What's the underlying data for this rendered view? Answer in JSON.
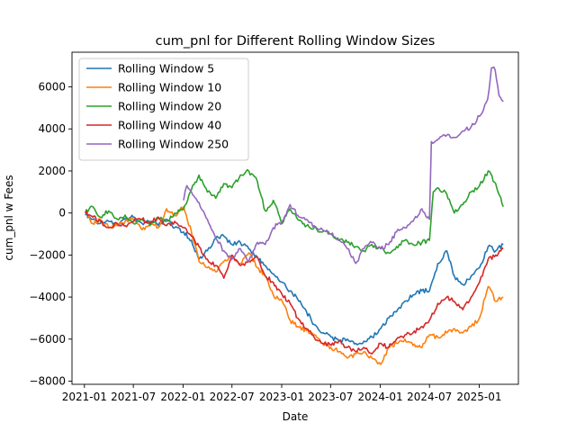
{
  "chart_data": {
    "type": "line",
    "title": "cum_pnl for Different Rolling Window Sizes",
    "xlabel": "Date",
    "ylabel": "cum_pnl w Fees",
    "x_axis": "date",
    "xlim": [
      "2020-11-16",
      "2025-05-26"
    ],
    "ylim": [
      -8150,
      7650
    ],
    "x_ticks": [
      "2021-01",
      "2021-07",
      "2022-01",
      "2022-07",
      "2023-01",
      "2023-07",
      "2024-01",
      "2024-07",
      "2025-01"
    ],
    "y_ticks": [
      -8000,
      -6000,
      -4000,
      -2000,
      0,
      2000,
      4000,
      6000
    ],
    "y_tick_labels": [
      "−8000",
      "−6000",
      "−4000",
      "−2000",
      "0",
      "2000",
      "4000",
      "6000"
    ],
    "grid": false,
    "legend_location": "upper-left",
    "series": [
      {
        "name": "Rolling Window 5",
        "color": "#1f77b4",
        "points": [
          [
            "2021-01-04",
            -100
          ],
          [
            "2021-02-01",
            -300
          ],
          [
            "2021-03-01",
            -500
          ],
          [
            "2021-04-01",
            -400
          ],
          [
            "2021-05-03",
            -600
          ],
          [
            "2021-06-01",
            -300
          ],
          [
            "2021-07-01",
            -200
          ],
          [
            "2021-08-02",
            -500
          ],
          [
            "2021-09-01",
            -400
          ],
          [
            "2021-10-01",
            -600
          ],
          [
            "2021-11-01",
            -300
          ],
          [
            "2021-12-01",
            -700
          ],
          [
            "2022-01-03",
            -900
          ],
          [
            "2022-02-01",
            -1300
          ],
          [
            "2022-03-01",
            -2200
          ],
          [
            "2022-04-01",
            -1800
          ],
          [
            "2022-05-02",
            -1200
          ],
          [
            "2022-06-01",
            -1100
          ],
          [
            "2022-07-01",
            -1500
          ],
          [
            "2022-08-01",
            -1400
          ],
          [
            "2022-09-01",
            -1700
          ],
          [
            "2022-10-03",
            -2100
          ],
          [
            "2022-11-01",
            -2500
          ],
          [
            "2022-12-01",
            -2900
          ],
          [
            "2023-01-03",
            -3300
          ],
          [
            "2023-02-01",
            -3700
          ],
          [
            "2023-03-01",
            -4100
          ],
          [
            "2023-04-03",
            -4700
          ],
          [
            "2023-05-01",
            -5300
          ],
          [
            "2023-06-01",
            -5700
          ],
          [
            "2023-07-03",
            -5900
          ],
          [
            "2023-08-01",
            -6100
          ],
          [
            "2023-09-01",
            -6000
          ],
          [
            "2023-10-02",
            -6200
          ],
          [
            "2023-11-01",
            -6100
          ],
          [
            "2023-12-01",
            -5900
          ],
          [
            "2024-01-02",
            -5500
          ],
          [
            "2024-02-01",
            -5000
          ],
          [
            "2024-03-01",
            -4700
          ],
          [
            "2024-04-01",
            -4200
          ],
          [
            "2024-05-01",
            -3900
          ],
          [
            "2024-06-03",
            -3700
          ],
          [
            "2024-07-01",
            -3700
          ],
          [
            "2024-08-01",
            -2400
          ],
          [
            "2024-09-03",
            -1800
          ],
          [
            "2024-10-01",
            -3000
          ],
          [
            "2024-11-01",
            -3400
          ],
          [
            "2024-12-02",
            -3000
          ],
          [
            "2025-01-02",
            -2600
          ],
          [
            "2025-02-03",
            -1600
          ],
          [
            "2025-03-03",
            -1800
          ],
          [
            "2025-03-31",
            -1500
          ]
        ]
      },
      {
        "name": "Rolling Window 10",
        "color": "#ff7f0e",
        "points": [
          [
            "2021-01-04",
            100
          ],
          [
            "2021-02-01",
            -500
          ],
          [
            "2021-03-01",
            -300
          ],
          [
            "2021-04-01",
            -700
          ],
          [
            "2021-05-03",
            -600
          ],
          [
            "2021-06-01",
            -400
          ],
          [
            "2021-07-01",
            -300
          ],
          [
            "2021-08-02",
            -800
          ],
          [
            "2021-09-01",
            -500
          ],
          [
            "2021-10-01",
            -700
          ],
          [
            "2021-11-01",
            200
          ],
          [
            "2021-12-01",
            -100
          ],
          [
            "2022-01-03",
            300
          ],
          [
            "2022-02-01",
            -900
          ],
          [
            "2022-03-01",
            -2300
          ],
          [
            "2022-04-01",
            -2600
          ],
          [
            "2022-05-02",
            -2800
          ],
          [
            "2022-06-01",
            -2300
          ],
          [
            "2022-07-01",
            -2000
          ],
          [
            "2022-08-01",
            -2400
          ],
          [
            "2022-09-01",
            -1900
          ],
          [
            "2022-10-03",
            -2600
          ],
          [
            "2022-11-01",
            -3000
          ],
          [
            "2022-12-01",
            -3900
          ],
          [
            "2023-01-03",
            -4200
          ],
          [
            "2023-02-01",
            -5100
          ],
          [
            "2023-03-01",
            -5400
          ],
          [
            "2023-04-03",
            -5600
          ],
          [
            "2023-05-01",
            -5800
          ],
          [
            "2023-06-01",
            -6200
          ],
          [
            "2023-07-03",
            -6400
          ],
          [
            "2023-08-01",
            -6600
          ],
          [
            "2023-09-01",
            -6900
          ],
          [
            "2023-10-02",
            -6700
          ],
          [
            "2023-11-01",
            -6600
          ],
          [
            "2023-12-01",
            -6900
          ],
          [
            "2024-01-02",
            -7200
          ],
          [
            "2024-02-01",
            -6400
          ],
          [
            "2024-03-01",
            -6200
          ],
          [
            "2024-04-01",
            -6000
          ],
          [
            "2024-05-01",
            -6300
          ],
          [
            "2024-06-03",
            -6400
          ],
          [
            "2024-07-01",
            -5800
          ],
          [
            "2024-08-01",
            -5900
          ],
          [
            "2024-09-03",
            -5700
          ],
          [
            "2024-10-01",
            -5500
          ],
          [
            "2024-11-01",
            -5700
          ],
          [
            "2024-12-02",
            -5400
          ],
          [
            "2025-01-02",
            -5000
          ],
          [
            "2025-02-03",
            -3500
          ],
          [
            "2025-03-03",
            -4200
          ],
          [
            "2025-03-31",
            -4000
          ]
        ]
      },
      {
        "name": "Rolling Window 20",
        "color": "#2ca02c",
        "points": [
          [
            "2021-01-04",
            0
          ],
          [
            "2021-02-01",
            300
          ],
          [
            "2021-03-01",
            -200
          ],
          [
            "2021-04-01",
            100
          ],
          [
            "2021-05-03",
            -300
          ],
          [
            "2021-06-01",
            -100
          ],
          [
            "2021-07-01",
            -500
          ],
          [
            "2021-08-02",
            -300
          ],
          [
            "2021-09-01",
            -600
          ],
          [
            "2021-10-01",
            -200
          ],
          [
            "2021-11-01",
            -400
          ],
          [
            "2021-12-01",
            0
          ],
          [
            "2022-01-03",
            200
          ],
          [
            "2022-02-01",
            1100
          ],
          [
            "2022-03-01",
            1800
          ],
          [
            "2022-04-01",
            1000
          ],
          [
            "2022-05-02",
            700
          ],
          [
            "2022-06-01",
            1400
          ],
          [
            "2022-07-01",
            1200
          ],
          [
            "2022-08-01",
            1800
          ],
          [
            "2022-09-01",
            2000
          ],
          [
            "2022-10-03",
            1500
          ],
          [
            "2022-11-01",
            100
          ],
          [
            "2022-12-01",
            600
          ],
          [
            "2023-01-03",
            -500
          ],
          [
            "2023-02-01",
            200
          ],
          [
            "2023-03-01",
            -300
          ],
          [
            "2023-04-03",
            -600
          ],
          [
            "2023-05-01",
            -700
          ],
          [
            "2023-06-01",
            -900
          ],
          [
            "2023-07-03",
            -1000
          ],
          [
            "2023-08-01",
            -1300
          ],
          [
            "2023-09-01",
            -1400
          ],
          [
            "2023-10-02",
            -1600
          ],
          [
            "2023-11-01",
            -1800
          ],
          [
            "2023-12-01",
            -1500
          ],
          [
            "2024-01-02",
            -1700
          ],
          [
            "2024-02-01",
            -1900
          ],
          [
            "2024-03-01",
            -1600
          ],
          [
            "2024-04-01",
            -1300
          ],
          [
            "2024-05-01",
            -1500
          ],
          [
            "2024-06-03",
            -1400
          ],
          [
            "2024-07-01",
            -1300
          ],
          [
            "2024-07-15",
            1000
          ],
          [
            "2024-08-01",
            1200
          ],
          [
            "2024-09-03",
            900
          ],
          [
            "2024-10-01",
            0
          ],
          [
            "2024-11-01",
            400
          ],
          [
            "2024-12-02",
            1000
          ],
          [
            "2025-01-02",
            1300
          ],
          [
            "2025-02-03",
            2000
          ],
          [
            "2025-03-03",
            1400
          ],
          [
            "2025-03-31",
            300
          ]
        ]
      },
      {
        "name": "Rolling Window 40",
        "color": "#d62728",
        "points": [
          [
            "2021-01-04",
            0
          ],
          [
            "2021-02-01",
            -200
          ],
          [
            "2021-03-01",
            -400
          ],
          [
            "2021-04-01",
            -700
          ],
          [
            "2021-05-03",
            -500
          ],
          [
            "2021-06-01",
            -600
          ],
          [
            "2021-07-01",
            -400
          ],
          [
            "2021-08-02",
            -300
          ],
          [
            "2021-09-01",
            -500
          ],
          [
            "2021-10-01",
            -200
          ],
          [
            "2021-11-01",
            -600
          ],
          [
            "2021-12-01",
            -400
          ],
          [
            "2022-01-03",
            -700
          ],
          [
            "2022-02-01",
            -1100
          ],
          [
            "2022-03-01",
            -1600
          ],
          [
            "2022-04-01",
            -2200
          ],
          [
            "2022-05-02",
            -2500
          ],
          [
            "2022-06-01",
            -3100
          ],
          [
            "2022-07-01",
            -2000
          ],
          [
            "2022-08-01",
            -2500
          ],
          [
            "2022-09-01",
            -2300
          ],
          [
            "2022-10-03",
            -2100
          ],
          [
            "2022-11-01",
            -3000
          ],
          [
            "2022-12-01",
            -3300
          ],
          [
            "2023-01-03",
            -3900
          ],
          [
            "2023-02-01",
            -4300
          ],
          [
            "2023-03-01",
            -5000
          ],
          [
            "2023-04-03",
            -5500
          ],
          [
            "2023-05-01",
            -5900
          ],
          [
            "2023-06-01",
            -6200
          ],
          [
            "2023-07-03",
            -6300
          ],
          [
            "2023-08-01",
            -6100
          ],
          [
            "2023-09-01",
            -6400
          ],
          [
            "2023-10-02",
            -6600
          ],
          [
            "2023-11-01",
            -6400
          ],
          [
            "2023-12-01",
            -6700
          ],
          [
            "2024-01-02",
            -6200
          ],
          [
            "2024-02-01",
            -6400
          ],
          [
            "2024-03-01",
            -6000
          ],
          [
            "2024-04-01",
            -5800
          ],
          [
            "2024-05-01",
            -5700
          ],
          [
            "2024-06-03",
            -5400
          ],
          [
            "2024-07-01",
            -5100
          ],
          [
            "2024-08-01",
            -4300
          ],
          [
            "2024-09-03",
            -4000
          ],
          [
            "2024-10-01",
            -4200
          ],
          [
            "2024-11-01",
            -4600
          ],
          [
            "2024-12-02",
            -4000
          ],
          [
            "2025-01-02",
            -3300
          ],
          [
            "2025-02-03",
            -2200
          ],
          [
            "2025-03-03",
            -2000
          ],
          [
            "2025-03-31",
            -1700
          ]
        ]
      },
      {
        "name": "Rolling Window 250",
        "color": "#9467bd",
        "points": [
          [
            "2022-01-03",
            600
          ],
          [
            "2022-01-15",
            1300
          ],
          [
            "2022-02-01",
            1000
          ],
          [
            "2022-03-01",
            500
          ],
          [
            "2022-04-01",
            -300
          ],
          [
            "2022-05-02",
            -1200
          ],
          [
            "2022-06-01",
            -1800
          ],
          [
            "2022-07-01",
            -2200
          ],
          [
            "2022-08-01",
            -1700
          ],
          [
            "2022-09-01",
            -2300
          ],
          [
            "2022-10-03",
            -1400
          ],
          [
            "2022-11-01",
            -1500
          ],
          [
            "2022-12-01",
            -700
          ],
          [
            "2023-01-03",
            -400
          ],
          [
            "2023-02-01",
            400
          ],
          [
            "2023-03-01",
            -100
          ],
          [
            "2023-04-03",
            -300
          ],
          [
            "2023-05-01",
            -600
          ],
          [
            "2023-06-01",
            -800
          ],
          [
            "2023-07-03",
            -1000
          ],
          [
            "2023-08-01",
            -1300
          ],
          [
            "2023-09-01",
            -1700
          ],
          [
            "2023-10-02",
            -2400
          ],
          [
            "2023-11-01",
            -1700
          ],
          [
            "2023-12-01",
            -1400
          ],
          [
            "2024-01-02",
            -1700
          ],
          [
            "2024-02-01",
            -1500
          ],
          [
            "2024-03-01",
            -900
          ],
          [
            "2024-04-01",
            -700
          ],
          [
            "2024-05-01",
            -400
          ],
          [
            "2024-06-03",
            200
          ],
          [
            "2024-07-01",
            -300
          ],
          [
            "2024-07-08",
            3400
          ],
          [
            "2024-08-01",
            3500
          ],
          [
            "2024-09-03",
            3700
          ],
          [
            "2024-10-01",
            3600
          ],
          [
            "2024-11-01",
            3900
          ],
          [
            "2024-12-02",
            4100
          ],
          [
            "2025-01-02",
            4600
          ],
          [
            "2025-02-01",
            5400
          ],
          [
            "2025-02-15",
            6900
          ],
          [
            "2025-03-01",
            6800
          ],
          [
            "2025-03-15",
            5600
          ],
          [
            "2025-03-31",
            5300
          ]
        ]
      }
    ]
  }
}
